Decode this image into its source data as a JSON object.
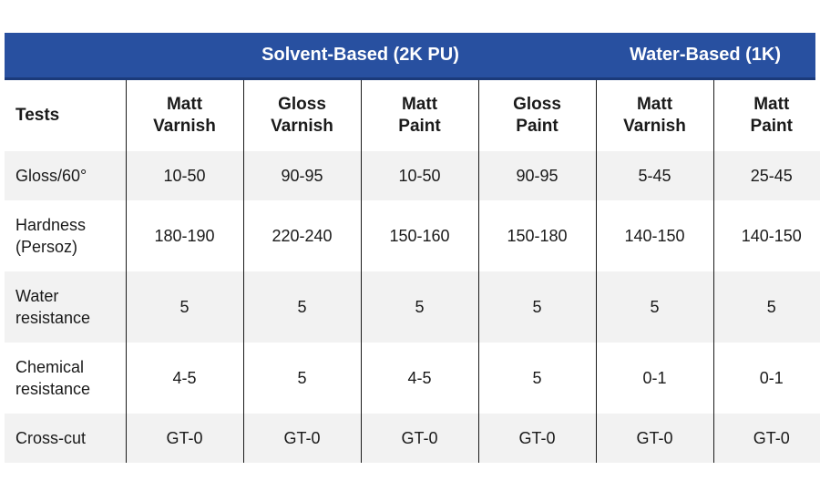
{
  "groups": {
    "solvent": "Solvent-Based (2K PU)",
    "water": "Water-Based (1K)"
  },
  "columns": {
    "tests": "Tests",
    "c1": [
      "Matt",
      "Varnish"
    ],
    "c2": [
      "Gloss",
      "Varnish"
    ],
    "c3": [
      "Matt",
      "Paint"
    ],
    "c4": [
      "Gloss",
      "Paint"
    ],
    "c5": [
      "Matt",
      "Varnish"
    ],
    "c6": [
      "Matt",
      "Paint"
    ]
  },
  "rows": [
    {
      "test": [
        "Gloss/60°"
      ],
      "values": [
        "10-50",
        "90-95",
        "10-50",
        "90-95",
        "5-45",
        "25-45"
      ]
    },
    {
      "test": [
        "Hardness",
        "(Persoz)"
      ],
      "values": [
        "180-190",
        "220-240",
        "150-160",
        "150-180",
        "140-150",
        "140-150"
      ]
    },
    {
      "test": [
        "Water",
        "resistance"
      ],
      "values": [
        "5",
        "5",
        "5",
        "5",
        "5",
        "5"
      ]
    },
    {
      "test": [
        "Chemical",
        "resistance"
      ],
      "values": [
        "4-5",
        "5",
        "4-5",
        "5",
        "0-1",
        "0-1"
      ]
    },
    {
      "test": [
        "Cross-cut"
      ],
      "values": [
        "GT-0",
        "GT-0",
        "GT-0",
        "GT-0",
        "GT-0",
        "GT-0"
      ]
    }
  ],
  "colors": {
    "banner": "#2850a0",
    "stripe": "#f2f2f2"
  }
}
